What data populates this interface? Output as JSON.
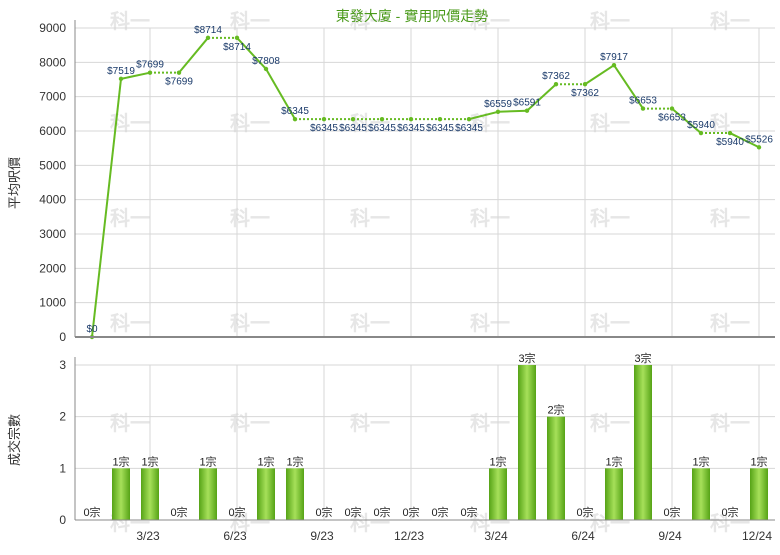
{
  "title": "東發大廈 - 實用呎價走勢",
  "watermark": "科一",
  "colors": {
    "line": "#66bb22",
    "bar_light": "#a6e05a",
    "bar_dark": "#56a316",
    "grid": "#d7d7d7",
    "axis": "#888888",
    "title": "#4a9a1a"
  },
  "chart_data": [
    {
      "type": "line",
      "ylabel": "平均呎價",
      "ylim": [
        0,
        9000
      ],
      "yticks": [
        0,
        1000,
        2000,
        3000,
        4000,
        5000,
        6000,
        7000,
        8000,
        9000
      ],
      "x_tick_labels": [
        "3/23",
        "6/23",
        "9/23",
        "12/23",
        "3/24",
        "6/24",
        "9/24",
        "12/24"
      ],
      "grid": true,
      "points": [
        {
          "month": "2022-12",
          "value": 0,
          "label": "$0",
          "dotted": false
        },
        {
          "month": "2023-01",
          "value": 7519,
          "label": "$7519",
          "dotted": false
        },
        {
          "month": "2023-02",
          "value": 7699,
          "label": "$7699",
          "dotted": false
        },
        {
          "month": "2023-03",
          "value": 7699,
          "label": "$7699",
          "dotted": true
        },
        {
          "month": "2023-04",
          "value": 8714,
          "label": "$8714",
          "dotted": false
        },
        {
          "month": "2023-05",
          "value": 8714,
          "label": "$8714",
          "dotted": true
        },
        {
          "month": "2023-06",
          "value": 7808,
          "label": "$7808",
          "dotted": false
        },
        {
          "month": "2023-07",
          "value": 6345,
          "label": "$6345",
          "dotted": false
        },
        {
          "month": "2023-08",
          "value": 6345,
          "label": "$6345",
          "dotted": true
        },
        {
          "month": "2023-09",
          "value": 6345,
          "label": "$6345",
          "dotted": true
        },
        {
          "month": "2023-10",
          "value": 6345,
          "label": "$6345",
          "dotted": true
        },
        {
          "month": "2023-11",
          "value": 6345,
          "label": "$6345",
          "dotted": true
        },
        {
          "month": "2023-12",
          "value": 6345,
          "label": "$6345",
          "dotted": true
        },
        {
          "month": "2024-01",
          "value": 6345,
          "label": "$6345",
          "dotted": true
        },
        {
          "month": "2024-02",
          "value": 6559,
          "label": "$6559",
          "dotted": false
        },
        {
          "month": "2024-03",
          "value": 6591,
          "label": "$6591",
          "dotted": false
        },
        {
          "month": "2024-04",
          "value": 7362,
          "label": "$7362",
          "dotted": false
        },
        {
          "month": "2024-05",
          "value": 7362,
          "label": "$7362",
          "dotted": true
        },
        {
          "month": "2024-06",
          "value": 7917,
          "label": "$7917",
          "dotted": false
        },
        {
          "month": "2024-07",
          "value": 6653,
          "label": "$6653",
          "dotted": false
        },
        {
          "month": "2024-08",
          "value": 6653,
          "label": "$6653",
          "dotted": true
        },
        {
          "month": "2024-09",
          "value": 5940,
          "label": "$5940",
          "dotted": false
        },
        {
          "month": "2024-10",
          "value": 5940,
          "label": "$5940",
          "dotted": true
        },
        {
          "month": "2024-11",
          "value": 5526,
          "label": "$5526",
          "dotted": false
        }
      ]
    },
    {
      "type": "bar",
      "ylabel": "成交宗數",
      "ylim": [
        0,
        3
      ],
      "yticks": [
        0,
        1,
        2,
        3
      ],
      "grid": true,
      "categories": [
        "2022-12",
        "2023-01",
        "2023-02",
        "2023-03",
        "2023-04",
        "2023-05",
        "2023-06",
        "2023-07",
        "2023-08",
        "2023-09",
        "2023-10",
        "2023-11",
        "2023-12",
        "2024-01",
        "2024-02",
        "2024-03",
        "2024-04",
        "2024-05",
        "2024-06",
        "2024-07",
        "2024-08",
        "2024-09",
        "2024-10",
        "2024-11"
      ],
      "values": [
        0,
        1,
        1,
        0,
        1,
        0,
        1,
        1,
        0,
        0,
        0,
        0,
        0,
        0,
        1,
        3,
        2,
        0,
        1,
        3,
        0,
        1,
        0,
        1
      ],
      "labels": [
        "0宗",
        "1宗",
        "1宗",
        "0宗",
        "1宗",
        "0宗",
        "1宗",
        "1宗",
        "0宗",
        "0宗",
        "0宗",
        "0宗",
        "0宗",
        "0宗",
        "1宗",
        "3宗",
        "2宗",
        "0宗",
        "1宗",
        "3宗",
        "0宗",
        "1宗",
        "0宗",
        "1宗"
      ]
    }
  ]
}
